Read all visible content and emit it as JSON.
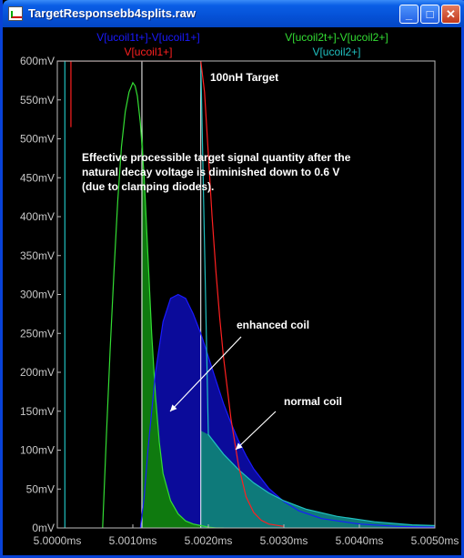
{
  "window": {
    "title": "TargetResponsebb4splits.raw",
    "buttons": {
      "minimize": "_",
      "maximize": "□",
      "close": "✕"
    }
  },
  "chart_data": {
    "type": "line",
    "title": "100nH Target",
    "xlabel": "",
    "ylabel": "",
    "xlim": [
      5.0,
      5.005
    ],
    "ylim": [
      0,
      600
    ],
    "x_unit": "ms",
    "y_unit": "mV",
    "x_ticks": [
      5.0,
      5.001,
      5.002,
      5.003,
      5.004,
      5.005
    ],
    "x_tick_labels": [
      "5.0000ms",
      "5.0010ms",
      "5.0020ms",
      "5.0030ms",
      "5.0040ms",
      "5.0050ms"
    ],
    "y_ticks": [
      0,
      50,
      100,
      150,
      200,
      250,
      300,
      350,
      400,
      450,
      500,
      550,
      600
    ],
    "y_tick_labels": [
      "0mV",
      "50mV",
      "100mV",
      "150mV",
      "200mV",
      "250mV",
      "300mV",
      "350mV",
      "400mV",
      "450mV",
      "500mV",
      "550mV",
      "600mV"
    ],
    "grid": false,
    "legend": [
      {
        "name": "V[ucoil1t+]-V[ucoil1+]",
        "color": "#1a1aff",
        "position": "top-left"
      },
      {
        "name": "V[ucoil1+]",
        "color": "#ff2020",
        "position": "top-left"
      },
      {
        "name": "V[ucoil2t+]-V[ucoil2+]",
        "color": "#33dd33",
        "position": "top-right"
      },
      {
        "name": "V[ucoil2+]",
        "color": "#20c0c0",
        "position": "top-right"
      }
    ],
    "series": [
      {
        "name": "V[ucoil2t+]-V[ucoil2+]",
        "color": "#33dd33",
        "x": [
          5.0006,
          5.00065,
          5.0007,
          5.00075,
          5.0008,
          5.00085,
          5.0009,
          5.00095,
          5.001,
          5.00103,
          5.00106,
          5.0011,
          5.00115,
          5.0012,
          5.00125,
          5.0013,
          5.00135,
          5.0014,
          5.0015,
          5.0016,
          5.0017,
          5.0018,
          5.0019,
          5.002,
          5.0021,
          5.0022
        ],
        "y": [
          0,
          120,
          230,
          330,
          420,
          490,
          535,
          560,
          572,
          568,
          555,
          520,
          450,
          350,
          250,
          170,
          110,
          70,
          35,
          18,
          9,
          5,
          3,
          1,
          0,
          0
        ]
      },
      {
        "name": "V[ucoil1t+]-V[ucoil1+]",
        "color": "#1a1aff",
        "x": [
          5.0011,
          5.00115,
          5.0012,
          5.0013,
          5.0014,
          5.0015,
          5.0016,
          5.0017,
          5.0018,
          5.0019,
          5.002,
          5.0021,
          5.0022,
          5.0023,
          5.0024,
          5.0025,
          5.0026,
          5.0028,
          5.003,
          5.0032,
          5.0035,
          5.004,
          5.0045,
          5.005
        ],
        "y": [
          0,
          40,
          100,
          200,
          265,
          295,
          300,
          295,
          275,
          250,
          220,
          190,
          160,
          135,
          112,
          93,
          76,
          51,
          34,
          22,
          12,
          5,
          2,
          1
        ]
      },
      {
        "name": "V[ucoil2+]",
        "color": "#20c0c0",
        "x": [
          5.0,
          5.0005,
          5.0009,
          5.001,
          5.0013,
          5.0016,
          5.0019,
          5.002,
          5.0022,
          5.0024,
          5.0026,
          5.0028,
          5.003,
          5.0033,
          5.0037,
          5.0042,
          5.0047,
          5.005
        ],
        "y": [
          600,
          600,
          600,
          600,
          600,
          600,
          600,
          120,
          95,
          75,
          58,
          45,
          35,
          24,
          15,
          8,
          4,
          3
        ]
      },
      {
        "name": "V[ucoil1+]",
        "color": "#ff2020",
        "x": [
          5.0,
          5.0015,
          5.0019,
          5.00195,
          5.002,
          5.00205,
          5.0021,
          5.00215,
          5.0022,
          5.0023,
          5.0024,
          5.0025,
          5.0026,
          5.0027,
          5.0028,
          5.003
        ],
        "y": [
          600,
          600,
          600,
          560,
          480,
          400,
          330,
          270,
          220,
          140,
          80,
          40,
          20,
          10,
          5,
          2
        ]
      }
    ],
    "annotations": [
      {
        "text": "100nH Target"
      },
      {
        "lines": [
          "Effective processible target signal quantity after the",
          "natural decay voltage is diminished down to 0.6 V",
          "(due to clamping diodes)."
        ]
      },
      {
        "text": "enhanced coil"
      },
      {
        "text": "normal coil"
      }
    ]
  }
}
